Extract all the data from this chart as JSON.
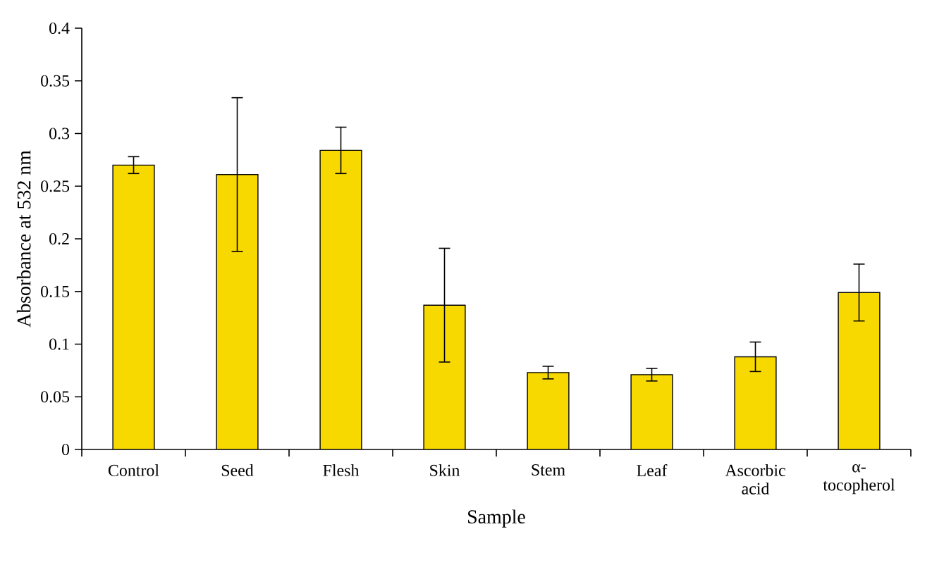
{
  "chart_data": {
    "type": "bar",
    "xlabel": "Sample",
    "ylabel": "Absorbance at 532 nm",
    "categories": [
      "Control",
      "Seed",
      "Flesh",
      "Skin",
      "Stem",
      "Leaf",
      "Ascorbic acid",
      "α-tocopherol"
    ],
    "values": [
      0.27,
      0.261,
      0.284,
      0.137,
      0.073,
      0.071,
      0.088,
      0.149
    ],
    "errors": [
      0.008,
      0.073,
      0.022,
      0.054,
      0.006,
      0.006,
      0.014,
      0.027
    ],
    "color": "#f7d900",
    "ylim": [
      0,
      0.4
    ],
    "yticks": [
      0,
      0.05,
      0.1,
      0.15,
      0.2,
      0.25,
      0.3,
      0.35,
      0.4
    ]
  }
}
